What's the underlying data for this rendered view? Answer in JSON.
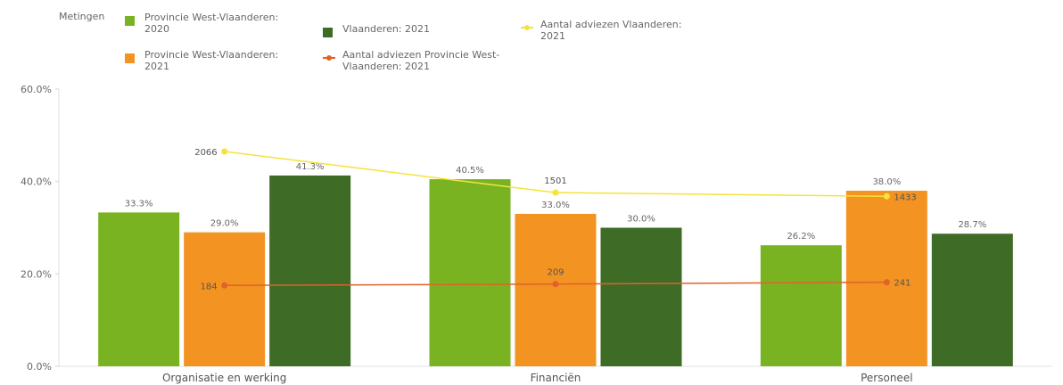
{
  "legend": {
    "title": "Metingen",
    "items": [
      {
        "label": "Provincie West-Vlaanderen: 2020",
        "color": "#7ab322",
        "kind": "bar"
      },
      {
        "label": "Provincie West-Vlaanderen: 2021",
        "color": "#f39322",
        "kind": "bar"
      },
      {
        "label": "Vlaanderen: 2021",
        "color": "#3e6b26",
        "kind": "bar"
      },
      {
        "label": "Aantal adviezen Provincie West-Vlaanderen: 2021",
        "color": "#e0622a",
        "kind": "line"
      },
      {
        "label": "Aantal adviezen Vlaanderen: 2021",
        "color": "#f5e33a",
        "kind": "line"
      }
    ]
  },
  "chart_data": {
    "type": "bar",
    "categories": [
      "Organisatie en werking",
      "Financiën",
      "Personeel"
    ],
    "y_ticks": [
      "0.0%",
      "20.0%",
      "40.0%",
      "60.0%"
    ],
    "ylim": [
      0,
      60
    ],
    "series": [
      {
        "name": "Provincie West-Vlaanderen: 2020",
        "color": "#7ab322",
        "values": [
          33.3,
          40.5,
          26.2
        ],
        "labels": [
          "33.3%",
          "40.5%",
          "26.2%"
        ]
      },
      {
        "name": "Provincie West-Vlaanderen: 2021",
        "color": "#f39322",
        "values": [
          29.0,
          33.0,
          38.0
        ],
        "labels": [
          "29.0%",
          "33.0%",
          "38.0%"
        ]
      },
      {
        "name": "Vlaanderen: 2021",
        "color": "#3e6b26",
        "values": [
          41.3,
          30.0,
          28.7
        ],
        "labels": [
          "41.3%",
          "30.0%",
          "28.7%"
        ]
      }
    ],
    "line_series": [
      {
        "name": "Aantal adviezen Provincie West-Vlaanderen: 2021",
        "color": "#e0622a",
        "values": [
          184,
          209,
          241
        ],
        "labels": [
          "184",
          "209",
          "241"
        ],
        "plot_levels_percent": [
          17.5,
          17.8,
          18.2
        ]
      },
      {
        "name": "Aantal adviezen Vlaanderen: 2021",
        "color": "#f5e33a",
        "values": [
          2066,
          1501,
          1433
        ],
        "labels": [
          "2066",
          "1501",
          "1433"
        ],
        "plot_levels_percent": [
          46.5,
          37.6,
          36.8
        ]
      }
    ],
    "grid": false,
    "legend_position": "top-left"
  }
}
